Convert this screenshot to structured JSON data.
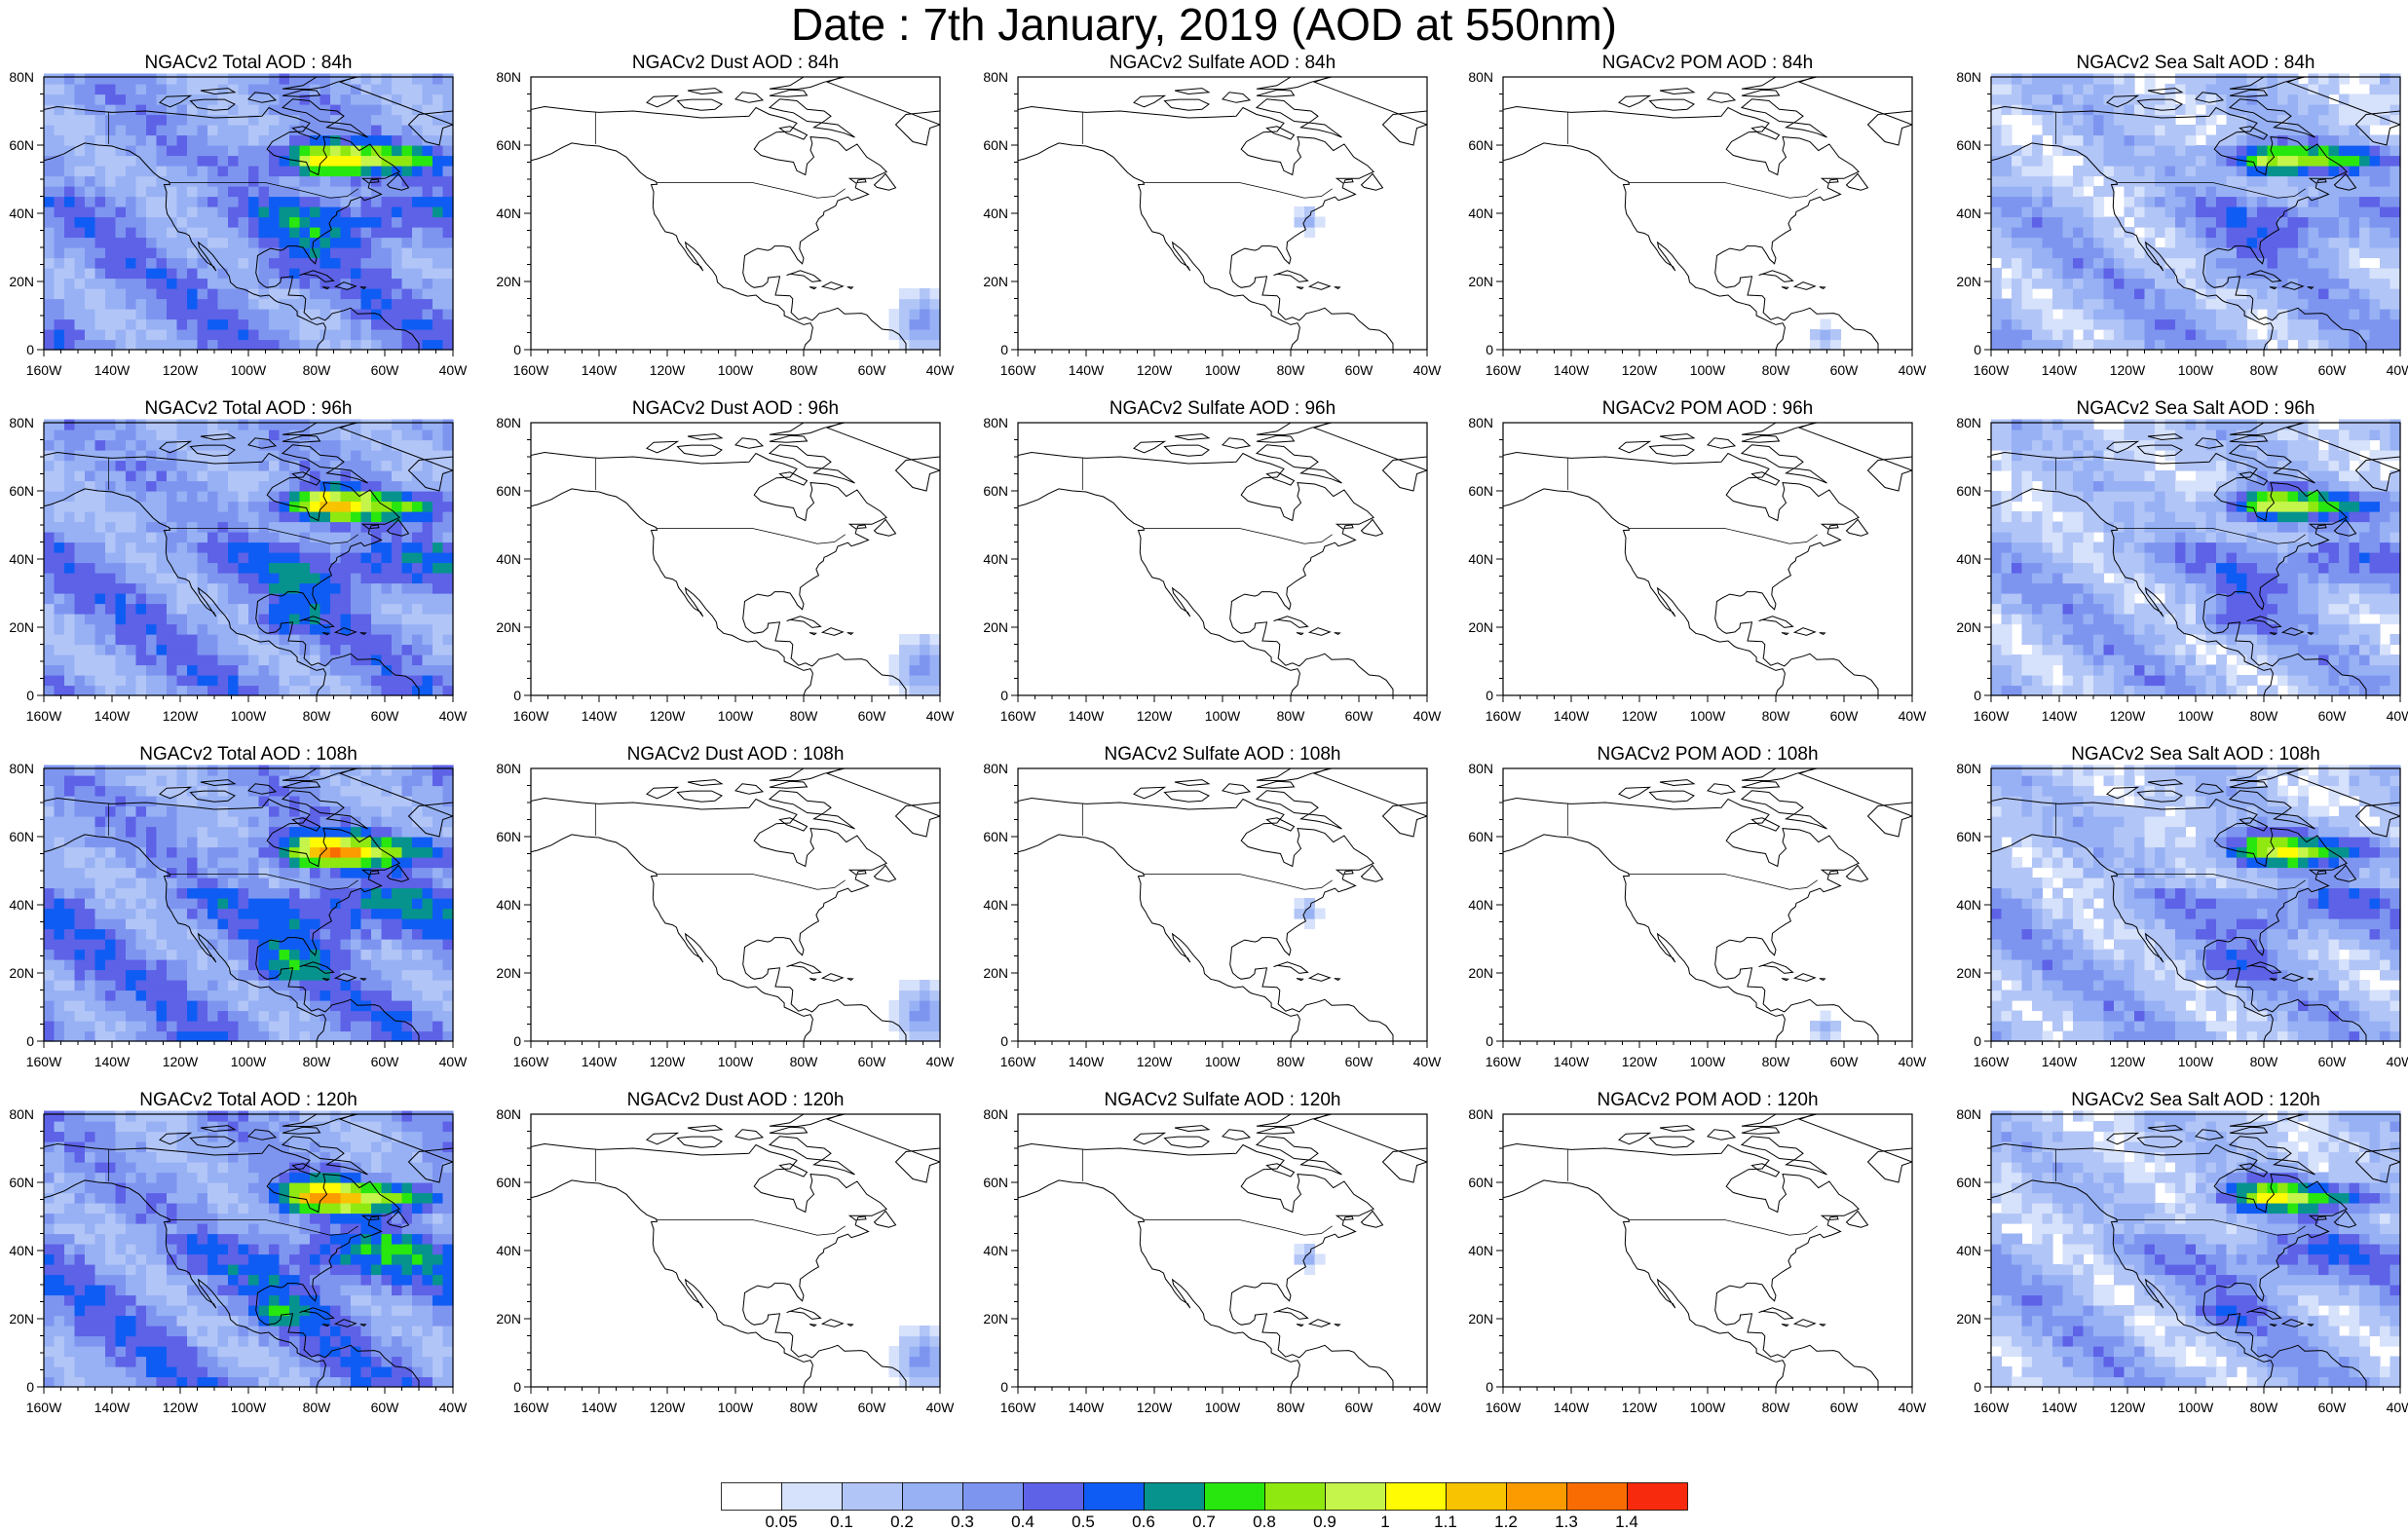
{
  "title": "Date : 7th January, 2019 (AOD at 550nm)",
  "axes": {
    "lon_ticks": [
      "160W",
      "140W",
      "120W",
      "100W",
      "80W",
      "60W",
      "40W"
    ],
    "lat_ticks": [
      "0",
      "20N",
      "40N",
      "60N",
      "80N"
    ]
  },
  "colorbar": {
    "levels": [
      "0.05",
      "0.1",
      "0.2",
      "0.3",
      "0.4",
      "0.5",
      "0.6",
      "0.7",
      "0.8",
      "0.9",
      "1",
      "1.1",
      "1.2",
      "1.3",
      "1.4"
    ],
    "colors": [
      "#ffffff",
      "#d6e1fb",
      "#b2c5f7",
      "#97b1f4",
      "#7e95f0",
      "#5d62e7",
      "#0f5cf4",
      "#06938e",
      "#28e70e",
      "#8fe911",
      "#c5f54a",
      "#fffb02",
      "#f8c300",
      "#fb9b00",
      "#f96c02",
      "#f82a0d"
    ]
  },
  "panels": [
    {
      "title": "NGACv2 Total AOD : 84h",
      "field": "total",
      "intensity": 0.85
    },
    {
      "title": "NGACv2 Dust AOD : 84h",
      "field": "dust",
      "intensity": 0.3
    },
    {
      "title": "NGACv2 Sulfate AOD : 84h",
      "field": "sulfate",
      "intensity": 0.2
    },
    {
      "title": "NGACv2 POM AOD : 84h",
      "field": "pom",
      "intensity": 0.15
    },
    {
      "title": "NGACv2 Sea Salt AOD : 84h",
      "field": "seasalt",
      "intensity": 0.8
    },
    {
      "title": "NGACv2 Total AOD : 96h",
      "field": "total",
      "intensity": 0.85
    },
    {
      "title": "NGACv2 Dust AOD : 96h",
      "field": "dust",
      "intensity": 0.3
    },
    {
      "title": "NGACv2 Sulfate AOD : 96h",
      "field": "sulfate",
      "intensity": 0.0
    },
    {
      "title": "NGACv2 POM AOD : 96h",
      "field": "pom",
      "intensity": 0.0
    },
    {
      "title": "NGACv2 Sea Salt AOD : 96h",
      "field": "seasalt",
      "intensity": 0.8
    },
    {
      "title": "NGACv2 Total AOD : 108h",
      "field": "total",
      "intensity": 0.9
    },
    {
      "title": "NGACv2 Dust AOD : 108h",
      "field": "dust",
      "intensity": 0.3
    },
    {
      "title": "NGACv2 Sulfate AOD : 108h",
      "field": "sulfate",
      "intensity": 0.2
    },
    {
      "title": "NGACv2 POM AOD : 108h",
      "field": "pom",
      "intensity": 0.15
    },
    {
      "title": "NGACv2 Sea Salt AOD : 108h",
      "field": "seasalt",
      "intensity": 0.8
    },
    {
      "title": "NGACv2 Total AOD : 120h",
      "field": "total",
      "intensity": 0.9
    },
    {
      "title": "NGACv2 Dust AOD : 120h",
      "field": "dust",
      "intensity": 0.3
    },
    {
      "title": "NGACv2 Sulfate AOD : 120h",
      "field": "sulfate",
      "intensity": 0.2
    },
    {
      "title": "NGACv2 POM AOD : 120h",
      "field": "pom",
      "intensity": 0.0
    },
    {
      "title": "NGACv2 Sea Salt  AOD : 120h",
      "field": "seasalt",
      "intensity": 0.8
    }
  ]
}
